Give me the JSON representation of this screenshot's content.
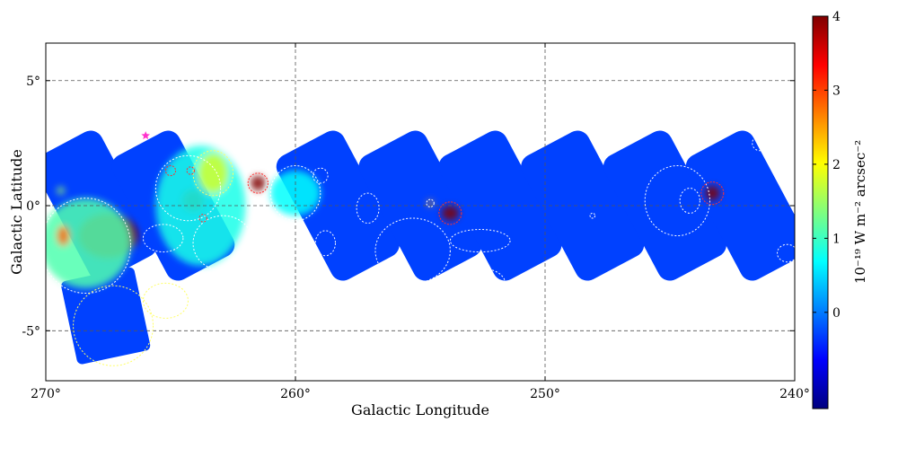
{
  "chart_data": {
    "type": "heatmap",
    "xlabel": "Galactic Longitude",
    "ylabel": "Galactic Latitude",
    "xlim": [
      270,
      240
    ],
    "ylim": [
      -7,
      6.5
    ],
    "x_ticks": [
      270,
      260,
      250,
      240
    ],
    "x_tick_labels": [
      "270°",
      "260°",
      "250°",
      "240°"
    ],
    "y_ticks": [
      5,
      0,
      -5
    ],
    "y_tick_labels": [
      "5°",
      "0°",
      "-5°"
    ],
    "grid": true,
    "colormap": "jet",
    "colorbar": {
      "label": "10⁻¹⁹ W m⁻² arcsec⁻²",
      "ticks": [
        0,
        1,
        2,
        3,
        4
      ],
      "tick_labels": [
        "0",
        "1",
        "2",
        "3",
        "4"
      ],
      "range": [
        -1.3,
        4
      ],
      "colors": [
        "#00007f",
        "#0000ff",
        "#007fff",
        "#00ffff",
        "#7fff7f",
        "#ffff00",
        "#ff7f00",
        "#ff0000",
        "#7f0000"
      ]
    },
    "background_level": -0.3,
    "survey_strips": [
      {
        "l_center": 268.0,
        "b_center": 0.0
      },
      {
        "l_center": 264.9,
        "b_center": 0.0
      },
      {
        "l_center": 258.3,
        "b_center": 0.0
      },
      {
        "l_center": 255.0,
        "b_center": 0.0
      },
      {
        "l_center": 251.8,
        "b_center": 0.0
      },
      {
        "l_center": 248.5,
        "b_center": 0.0
      },
      {
        "l_center": 245.2,
        "b_center": 0.0
      },
      {
        "l_center": 241.9,
        "b_center": 0.0
      }
    ],
    "sources": [
      {
        "l": 267.5,
        "b": -1.2,
        "rl": 1.2,
        "rb": 0.9,
        "value": 4.0
      },
      {
        "l": 268.4,
        "b": -1.5,
        "rl": 1.8,
        "rb": 1.8,
        "value": 1.1
      },
      {
        "l": 269.3,
        "b": -1.2,
        "rl": 0.25,
        "rb": 0.4,
        "value": 2.8
      },
      {
        "l": 264.1,
        "b": 0.2,
        "rl": 0.45,
        "rb": 0.45,
        "value": 4.0
      },
      {
        "l": 263.8,
        "b": 0.0,
        "rl": 1.8,
        "rb": 2.4,
        "value": 0.8
      },
      {
        "l": 263.3,
        "b": 1.3,
        "rl": 0.6,
        "rb": 0.8,
        "value": 1.8
      },
      {
        "l": 261.5,
        "b": 0.9,
        "rl": 0.3,
        "rb": 0.3,
        "value": 4.0
      },
      {
        "l": 260.0,
        "b": 0.5,
        "rl": 1.0,
        "rb": 0.9,
        "value": 0.7
      },
      {
        "l": 253.8,
        "b": -0.3,
        "rl": 0.35,
        "rb": 0.3,
        "value": 4.0
      },
      {
        "l": 254.6,
        "b": 0.1,
        "rl": 0.12,
        "rb": 0.12,
        "value": 2.5
      },
      {
        "l": 243.3,
        "b": 0.5,
        "rl": 0.3,
        "rb": 0.3,
        "value": 4.0
      },
      {
        "l": 269.4,
        "b": 0.6,
        "rl": 0.15,
        "rb": 0.15,
        "value": 1.5
      }
    ],
    "marker_star": {
      "l": 266.0,
      "b": 2.8
    },
    "region_circles": [
      {
        "l": 265.0,
        "b": 1.4,
        "rl": 0.2,
        "rb": 0.2,
        "color": "#ff3030"
      },
      {
        "l": 264.2,
        "b": 1.4,
        "rl": 0.15,
        "rb": 0.15,
        "color": "#ff3030"
      },
      {
        "l": 263.7,
        "b": -0.5,
        "rl": 0.15,
        "rb": 0.15,
        "color": "#ff3030"
      },
      {
        "l": 261.5,
        "b": 0.9,
        "rl": 0.4,
        "rb": 0.4,
        "color": "#ff3030"
      },
      {
        "l": 253.8,
        "b": -0.3,
        "rl": 0.45,
        "rb": 0.45,
        "color": "#ff3030"
      },
      {
        "l": 243.3,
        "b": 0.5,
        "rl": 0.45,
        "rb": 0.45,
        "color": "#ff3030"
      },
      {
        "l": 254.6,
        "b": 0.1,
        "rl": 0.15,
        "rb": 0.15,
        "color": "#ffffff"
      },
      {
        "l": 248.1,
        "b": -0.4,
        "rl": 0.1,
        "rb": 0.1,
        "color": "#ffffff"
      }
    ],
    "region_ellipses": [
      {
        "l": 268.4,
        "b": -1.6,
        "rl": 1.8,
        "rb": 1.9,
        "color": "#ffffff"
      },
      {
        "l": 264.3,
        "b": 0.7,
        "rl": 1.3,
        "rb": 1.3,
        "color": "#ffffff"
      },
      {
        "l": 263.3,
        "b": 1.3,
        "rl": 0.8,
        "rb": 0.9,
        "color": "#ffff66"
      },
      {
        "l": 262.9,
        "b": -1.5,
        "rl": 1.2,
        "rb": 1.1,
        "color": "#ffffff"
      },
      {
        "l": 260.0,
        "b": 0.5,
        "rl": 1.0,
        "rb": 1.1,
        "color": "#ffffff"
      },
      {
        "l": 259.0,
        "b": 1.2,
        "rl": 0.3,
        "rb": 0.3,
        "color": "#ffffff"
      },
      {
        "l": 265.3,
        "b": -1.3,
        "rl": 0.8,
        "rb": 0.55,
        "color": "#ffffff"
      },
      {
        "l": 258.8,
        "b": -1.5,
        "rl": 0.4,
        "rb": 0.5,
        "color": "#ffffff"
      },
      {
        "l": 259.9,
        "b": -2.9,
        "rl": 0.6,
        "rb": 0.6,
        "color": "#ffffff"
      },
      {
        "l": 257.1,
        "b": -0.1,
        "rl": 0.45,
        "rb": 0.6,
        "color": "#ffffff"
      },
      {
        "l": 255.3,
        "b": -1.8,
        "rl": 1.5,
        "rb": 1.3,
        "color": "#ffffff"
      },
      {
        "l": 252.6,
        "b": -1.4,
        "rl": 1.2,
        "rb": 0.45,
        "color": "#ffffff"
      },
      {
        "l": 252.6,
        "b": -3.1,
        "rl": 1.0,
        "rb": 0.6,
        "color": "#ffffff"
      },
      {
        "l": 244.7,
        "b": 0.2,
        "rl": 1.3,
        "rb": 1.4,
        "color": "#ffffff"
      },
      {
        "l": 244.2,
        "b": 0.2,
        "rl": 0.4,
        "rb": 0.5,
        "color": "#ffffff"
      },
      {
        "l": 241.4,
        "b": 2.5,
        "rl": 0.3,
        "rb": 0.3,
        "color": "#ffffff"
      },
      {
        "l": 240.3,
        "b": -1.9,
        "rl": 0.4,
        "rb": 0.35,
        "color": "#ffffff"
      },
      {
        "l": 267.3,
        "b": -4.8,
        "rl": 1.6,
        "rb": 1.6,
        "color": "#ffff66"
      },
      {
        "l": 265.2,
        "b": -3.8,
        "rl": 0.9,
        "rb": 0.7,
        "color": "#ffff66"
      }
    ]
  }
}
